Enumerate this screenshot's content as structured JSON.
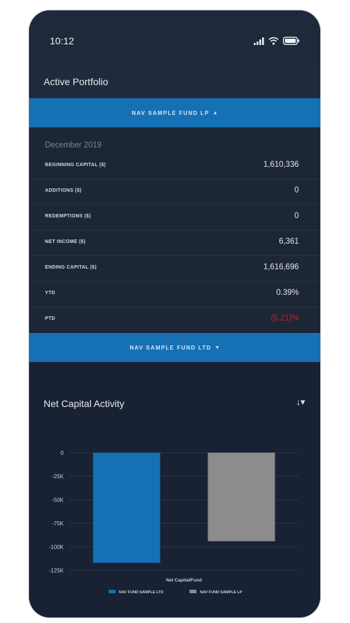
{
  "status": {
    "time": "10:12"
  },
  "header": {
    "title": "Active Portfolio"
  },
  "fund_selector_top": {
    "label": "NAV SAMPLE FUND LP",
    "caret": "▲"
  },
  "period": {
    "month": "December 2019"
  },
  "rows": [
    {
      "label": "BEGINNING CAPITAL ($)",
      "value": "1,610,336"
    },
    {
      "label": "ADDITIONS ($)",
      "value": "0"
    },
    {
      "label": "REDEMPTIONS ($)",
      "value": "0"
    },
    {
      "label": "NET INCOME ($)",
      "value": "6,361"
    },
    {
      "label": "ENDING CAPITAL ($)",
      "value": "1,616,696"
    },
    {
      "label": "YTD",
      "value": "0.39%"
    },
    {
      "label": "PTD",
      "value": "(5.21)%",
      "negative": true
    }
  ],
  "fund_selector_bottom": {
    "label": "NAV SAMPLE FUND LTD",
    "caret": "▼"
  },
  "chart_section": {
    "title": "Net Capital Activity",
    "sort_icon": "sort-down-icon"
  },
  "colors": {
    "accent": "#1670b4",
    "negative": "#c4222c",
    "bar_gray": "#8c8c8c",
    "background": "#1b2536"
  },
  "chart_data": {
    "type": "bar",
    "categories": [
      "NAV FUND SAMPLE LTD",
      "NAV FUND SAMPLE LP"
    ],
    "series": [
      {
        "values": [
          -117000,
          -94000
        ]
      }
    ],
    "bar_colors": [
      "#1670b4",
      "#8c8c8c"
    ],
    "xlabel": "Net Capital/Fund",
    "ylabel": "",
    "ylim": [
      -125000,
      0
    ],
    "yticks": [
      0,
      -25000,
      -50000,
      -75000,
      -100000,
      -125000
    ],
    "ytick_labels": [
      "0",
      "-25K",
      "-50K",
      "-75K",
      "-100K",
      "-125K"
    ],
    "legend": [
      "NAV FUND SAMPLE LTD",
      "NAV FUND SAMPLE LP"
    ],
    "legend_position": "bottom",
    "grid": true
  }
}
